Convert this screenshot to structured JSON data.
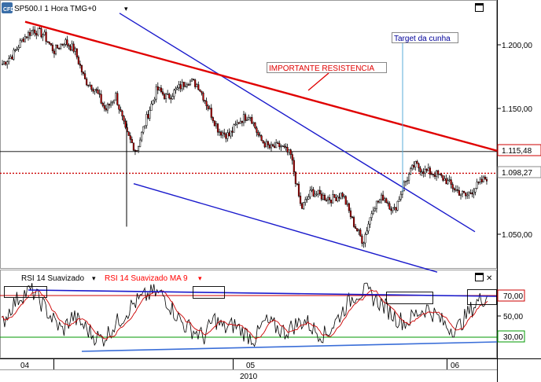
{
  "header": {
    "logo_text": "CFD",
    "title": "SP500.I 1 Hora TMG+0",
    "dropdown_arrow": "▾"
  },
  "colors": {
    "candle_up": "#ffffff",
    "candle_down": "#cc0000",
    "candle_outline": "#000000",
    "resistance_line": "#e00000",
    "channel_lines": "#1a1acc",
    "rsi_line": "#000000",
    "rsi_ma_line": "#cc0000",
    "rsi_70_line": "#cc0000",
    "rsi_30_line": "#009900",
    "price_dotted_line": "#cc0000",
    "label_text_red": "#e00000",
    "label_text_blue": "#000099",
    "rsi_ma_label_color": "#ff0000"
  },
  "price_panel": {
    "y_ticks": [
      "1.200,00",
      "1.150,00",
      "1.050,00"
    ],
    "current_price_label": "1.098,27",
    "horizontal_level_label": "1.115,48",
    "annotations": {
      "resistance": "IMPORTANTE RESISTENCIA",
      "target": "Target da cunha"
    }
  },
  "rsi_panel": {
    "label_rsi": "RSI 14 Suavizado",
    "label_rsi_ma": "RSI 14 Suavizado MA 9",
    "dropdown_arrow": "▾",
    "y_ticks": [
      "70,00",
      "50,00",
      "30,00"
    ],
    "close_icon": "✕"
  },
  "x_axis": {
    "month_labels": [
      "04",
      "05",
      "06"
    ],
    "year_label": "2010"
  },
  "chart_data": [
    {
      "type": "candlestick",
      "title": "SP500.I 1 Hora TMG+0",
      "x_labels": [
        "04",
        "05",
        "06"
      ],
      "ylim": [
        1020,
        1230
      ],
      "y_ticks": [
        1200,
        1150,
        1050
      ],
      "price_path": [
        1185,
        1192,
        1205,
        1212,
        1208,
        1195,
        1203,
        1196,
        1172,
        1165,
        1148,
        1160,
        1130,
        1116,
        1142,
        1165,
        1158,
        1165,
        1172,
        1168,
        1150,
        1132,
        1128,
        1140,
        1145,
        1125,
        1118,
        1120,
        1112,
        1070,
        1084,
        1080,
        1078,
        1082,
        1060,
        1044,
        1072,
        1080,
        1068,
        1090,
        1105,
        1100,
        1098,
        1093,
        1085,
        1080,
        1088,
        1095
      ],
      "current_price": 1098.27,
      "horizontal_level": 1115.48,
      "resistance_line": {
        "start": {
          "x": "04",
          "y": 1212
        },
        "end": {
          "x": "06",
          "y": 1118
        }
      },
      "annotations": [
        "IMPORTANTE RESISTENCIA",
        "Target da cunha"
      ]
    },
    {
      "type": "line",
      "series": [
        {
          "name": "RSI 14 Suavizado",
          "color": "#000000"
        },
        {
          "name": "RSI 14 Suavizado MA 9",
          "color": "#cc0000"
        }
      ],
      "ylim": [
        10,
        90
      ],
      "y_ticks": [
        70,
        50,
        30
      ],
      "levels": [
        70,
        30
      ],
      "rsi_path": [
        42,
        60,
        71,
        75,
        62,
        48,
        36,
        50,
        42,
        32,
        28,
        40,
        50,
        62,
        68,
        73,
        70,
        55,
        42,
        36,
        30,
        48,
        38,
        42,
        34,
        28,
        45,
        40,
        35,
        42,
        46,
        36,
        32,
        45,
        60,
        72,
        74,
        66,
        58,
        48,
        44,
        53,
        58,
        50,
        40,
        38,
        52,
        64,
        70
      ],
      "x_labels": [
        "04",
        "05",
        "06"
      ]
    }
  ]
}
